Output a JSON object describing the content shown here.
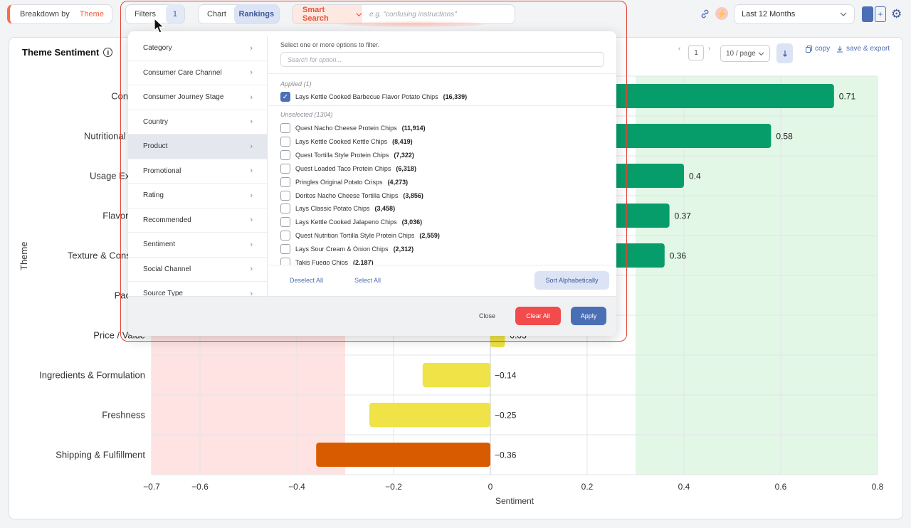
{
  "toolbar": {
    "breakdown_label": "Breakdown by",
    "breakdown_value": "Theme",
    "filters_label": "Filters",
    "filters_count": "1",
    "view_chart": "Chart",
    "view_rankings": "Rankings",
    "smart_search_label": "Smart Search",
    "smart_search_placeholder": "e.g. \"confusing instructions\"",
    "date_range": "Last 12 Months",
    "plus_label": "+"
  },
  "card": {
    "title": "Theme Sentiment",
    "page_number": "1",
    "page_size": "10 / page",
    "copy_label": "copy",
    "save_label": "save & export"
  },
  "filter_panel": {
    "categories": [
      "Category",
      "Consumer Care Channel",
      "Consumer Journey Stage",
      "Country",
      "Product",
      "Promotional",
      "Rating",
      "Recommended",
      "Sentiment",
      "Social Channel",
      "Source Type"
    ],
    "active_category": "Product",
    "hint": "Select one or more options to filter.",
    "search_placeholder": "Search for option...",
    "applied_header": "Applied (1)",
    "applied": [
      {
        "name": "Lays Kettle Cooked Barbecue Flavor Potato Chips",
        "count": "(16,339)"
      }
    ],
    "unselected_header": "Unselected (1304)",
    "unselected": [
      {
        "name": "Quest Nacho Cheese Protein Chips",
        "count": "(11,914)"
      },
      {
        "name": "Lays Kettle Cooked Kettle Chips",
        "count": "(8,419)"
      },
      {
        "name": "Quest Tortilla Style Protein Chips",
        "count": "(7,322)"
      },
      {
        "name": "Quest Loaded Taco Protein Chips",
        "count": "(6,318)"
      },
      {
        "name": "Pringles Original Potato Crisps",
        "count": "(4,273)"
      },
      {
        "name": "Doritos Nacho Cheese Tortilla Chips",
        "count": "(3,856)"
      },
      {
        "name": "Lays Classic Potato Chips",
        "count": "(3,458)"
      },
      {
        "name": "Lays Kettle Cooked Jalapeno Chips",
        "count": "(3,036)"
      },
      {
        "name": "Quest Nutrition Tortilla Style Protein Chips",
        "count": "(2,559)"
      },
      {
        "name": "Lays Sour Cream & Onion Chips",
        "count": "(2,312)"
      },
      {
        "name": "Takis Fuego Chips",
        "count": "(2,187)"
      }
    ],
    "deselect_all": "Deselect All",
    "select_all": "Select All",
    "sort_alpha": "Sort Alphabetically",
    "close": "Close",
    "clear_all": "Clear All",
    "apply": "Apply"
  },
  "colors": {
    "positive": "#079d6b",
    "neutral": "#efe347",
    "negative": "#d95b00",
    "negative_zone": "#ffe3e3",
    "positive_zone": "#e2f7e6",
    "accent": "#4b6fb5"
  },
  "chart_data": {
    "type": "bar",
    "orientation": "horizontal",
    "categories": [
      "Convenience",
      "Nutritional Content",
      "Usage Experience",
      "Flavor & Taste",
      "Texture & Consistency",
      "Packaging",
      "Price / Value",
      "Ingredients & Formulation",
      "Freshness",
      "Shipping & Fulfillment"
    ],
    "category_labels_visible": [
      "Conveni",
      "Nutritional Con",
      "Usage Experi",
      "Flavor & T",
      "Texture & Consiste",
      "Packag",
      "Price / Value",
      "Ingredients & Formulation",
      "Freshness",
      "Shipping & Fulfillment"
    ],
    "values": [
      0.71,
      0.58,
      0.4,
      0.37,
      0.36,
      null,
      0.03,
      -0.14,
      -0.25,
      -0.36
    ],
    "value_labels": [
      "0.71",
      "0.58",
      "0.4",
      "0.37",
      "0.36",
      "",
      "0.03",
      "−0.14",
      "−0.25",
      "−0.36"
    ],
    "bar_colors": [
      "positive",
      "positive",
      "positive",
      "positive",
      "positive",
      "neutral",
      "neutral",
      "neutral",
      "neutral",
      "negative"
    ],
    "xlabel": "Sentiment",
    "ylabel": "Theme",
    "xlim": [
      -0.7,
      0.8
    ],
    "xticks": [
      -0.7,
      -0.6,
      -0.4,
      -0.2,
      0,
      0.2,
      0.4,
      0.6,
      0.8
    ],
    "xtick_labels": [
      "−0.7",
      "−0.6",
      "−0.4",
      "−0.2",
      "0",
      "0.2",
      "0.4",
      "0.6",
      "0.8"
    ],
    "negative_zone": [
      -0.7,
      -0.3
    ],
    "positive_zone": [
      0.3,
      0.8
    ],
    "grid": true
  }
}
